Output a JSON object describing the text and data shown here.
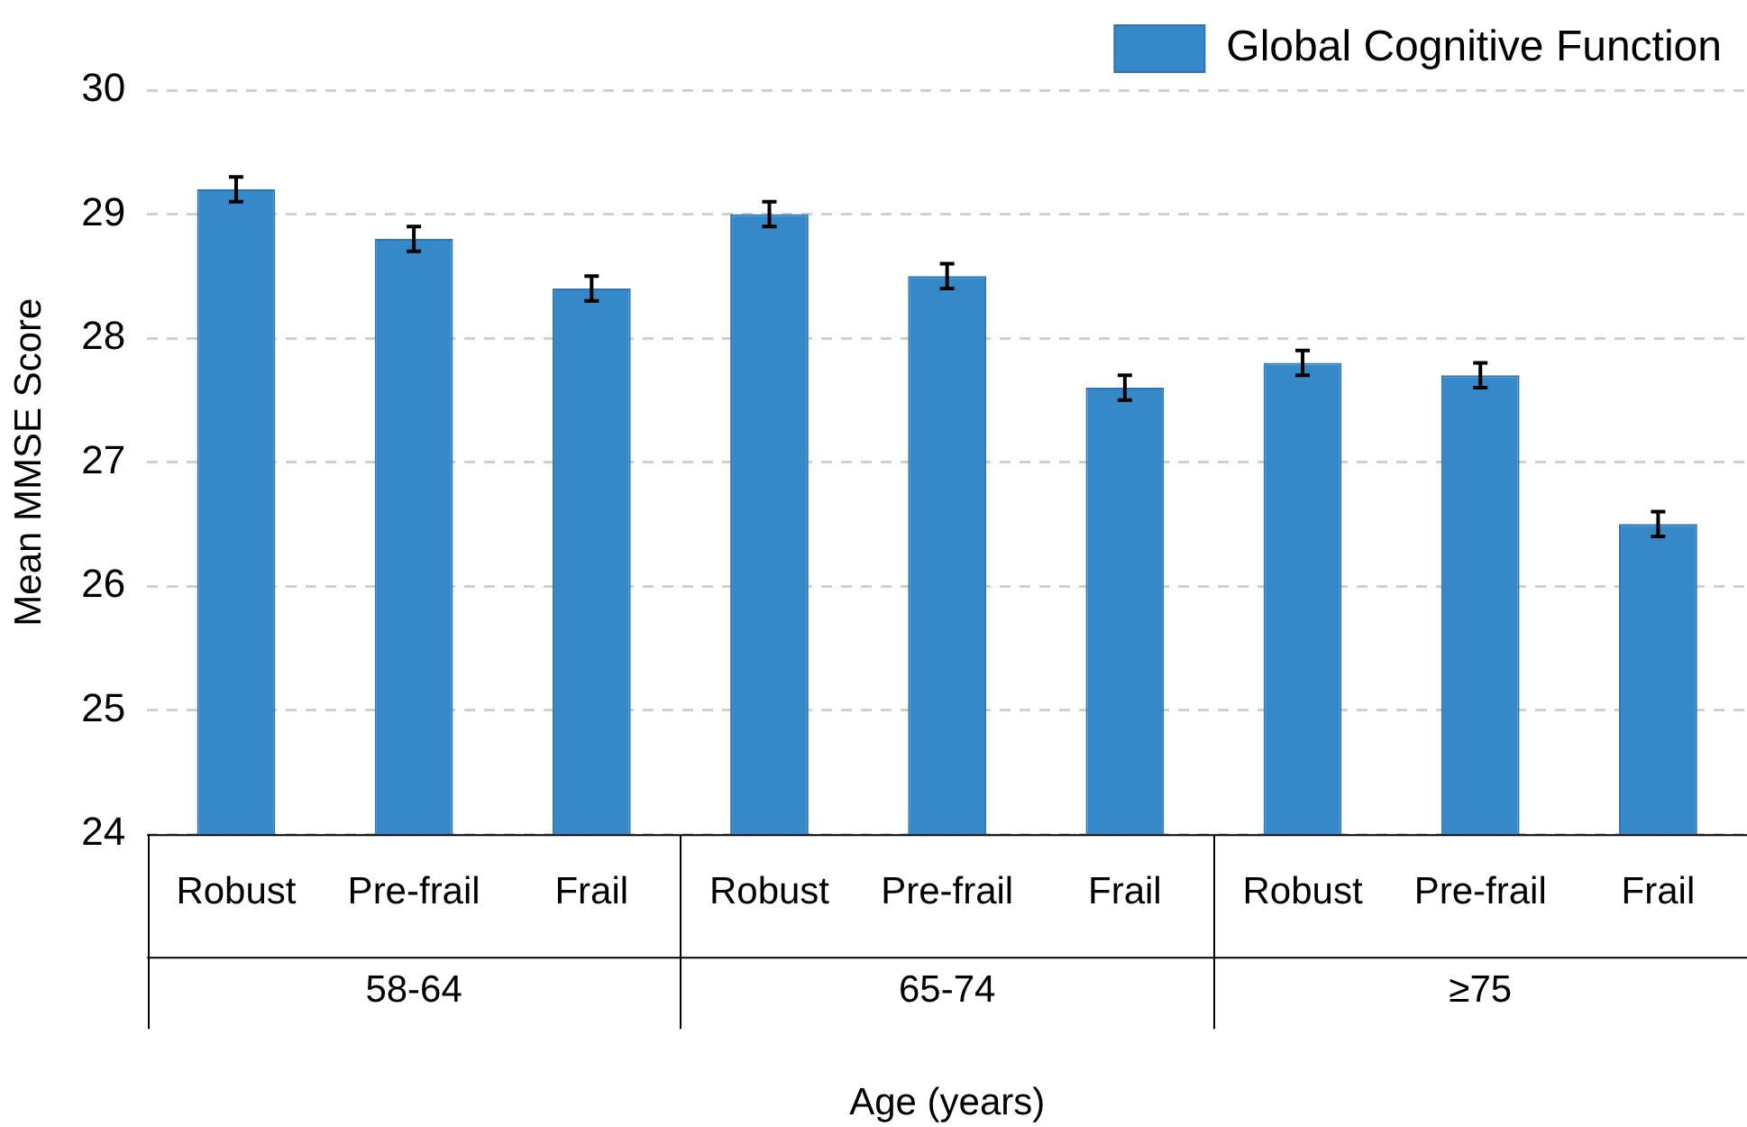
{
  "chart_data": {
    "type": "bar",
    "xlabel": "Age (years)",
    "ylabel": "Mean MMSE Score",
    "categories": [
      "Robust",
      "Pre-frail",
      "Frail",
      "Robust",
      "Pre-frail",
      "Frail",
      "Robust",
      "Pre-frail",
      "Frail"
    ],
    "series": [
      {
        "name": "Global Cognitive Function",
        "color": "#3589c9",
        "values": [
          29.2,
          28.8,
          28.4,
          29.0,
          28.5,
          27.6,
          27.8,
          27.7,
          26.5
        ],
        "errors": [
          0.1,
          0.1,
          0.1,
          0.1,
          0.1,
          0.1,
          0.1,
          0.1,
          0.1
        ]
      }
    ],
    "annotations": [
      "58-64",
      "65-74",
      "≥75"
    ],
    "ylim": [
      24,
      30
    ],
    "yticks": [
      24,
      25,
      26,
      27,
      28,
      29,
      30
    ],
    "grid": "y",
    "legend": "top right"
  }
}
